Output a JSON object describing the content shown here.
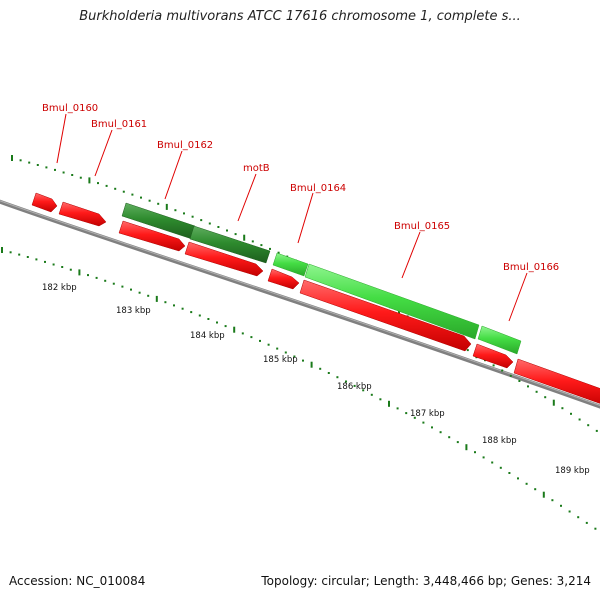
{
  "header": {
    "title": "Burkholderia multivorans ATCC 17616 chromosome 1, complete s..."
  },
  "footer": {
    "accession": "Accession: NC_010084",
    "summary": "Topology: circular; Length: 3,448,466 bp; Genes: 3,214"
  },
  "map": {
    "ticks": [
      "182 kbp",
      "183 kbp",
      "184 kbp",
      "185 kbp",
      "186 kbp",
      "187 kbp",
      "188 kbp",
      "189 kbp"
    ],
    "genes": [
      {
        "id": "Bmul_0160"
      },
      {
        "id": "Bmul_0161"
      },
      {
        "id": "Bmul_0162"
      },
      {
        "id": "motB"
      },
      {
        "id": "Bmul_0164"
      },
      {
        "id": "Bmul_0165"
      },
      {
        "id": "Bmul_0166"
      }
    ],
    "colors": {
      "gene_label": "#cc0000",
      "label_line": "#e00000",
      "feature_red": "#ff1a1a",
      "feature_dark_green": "#2e8b2e",
      "feature_light_green": "#44dd44",
      "backbone": "#777777",
      "tick_green": "#1a7a1a",
      "tick_label": "#111111"
    }
  }
}
